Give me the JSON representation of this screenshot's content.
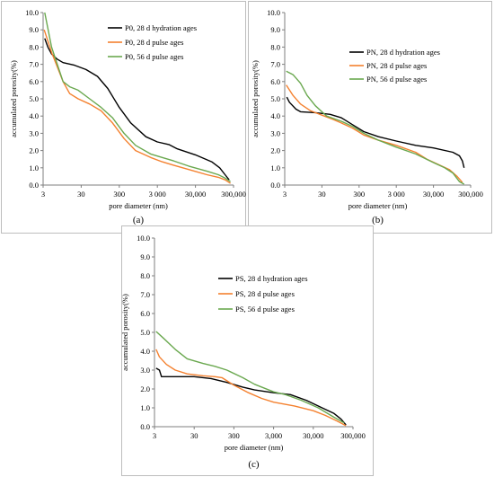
{
  "colors": {
    "black_series": "#000000",
    "orange_series": "#F4812F",
    "green_series": "#6AA84F"
  },
  "chart_data": [
    {
      "type": "line",
      "panel": "a",
      "caption": "(a)",
      "xlabel": "pore diameter (nm)",
      "ylabel": "accumulated porosity(%)",
      "x_scale": "log",
      "xlim": [
        3,
        300000
      ],
      "ylim": [
        0,
        10
      ],
      "x_ticks": [
        3,
        30,
        300,
        3000,
        30000,
        300000
      ],
      "x_tick_labels": [
        "3",
        "30",
        "300",
        "3 000",
        "30,000",
        "300,000"
      ],
      "y_ticks": [
        0,
        1,
        2,
        3,
        4,
        5,
        6,
        7,
        8,
        9,
        10
      ],
      "y_tick_labels": [
        "0.0",
        "1.0",
        "2.0",
        "3.0",
        "4.0",
        "5.0",
        "6.0",
        "7.0",
        "8.0",
        "9.0",
        "10.0"
      ],
      "grid": false,
      "legend_position": "top-right",
      "series": [
        {
          "name": "P0, 28 d hydration ages",
          "color": "#000000",
          "points": [
            [
              3.3,
              8.5
            ],
            [
              4,
              8.0
            ],
            [
              5,
              7.6
            ],
            [
              7,
              7.3
            ],
            [
              10,
              7.1
            ],
            [
              20,
              6.95
            ],
            [
              40,
              6.7
            ],
            [
              80,
              6.3
            ],
            [
              150,
              5.6
            ],
            [
              300,
              4.5
            ],
            [
              600,
              3.6
            ],
            [
              1500,
              2.8
            ],
            [
              3000,
              2.5
            ],
            [
              6000,
              2.35
            ],
            [
              10000,
              2.1
            ],
            [
              30000,
              1.75
            ],
            [
              80000,
              1.35
            ],
            [
              130000,
              1.0
            ],
            [
              180000,
              0.6
            ],
            [
              230000,
              0.3
            ]
          ]
        },
        {
          "name": "P0, 28 d pulse ages",
          "color": "#F4812F",
          "points": [
            [
              3.2,
              9.0
            ],
            [
              5,
              7.7
            ],
            [
              10,
              6.0
            ],
            [
              15,
              5.3
            ],
            [
              25,
              5.0
            ],
            [
              50,
              4.7
            ],
            [
              100,
              4.3
            ],
            [
              200,
              3.6
            ],
            [
              400,
              2.7
            ],
            [
              800,
              2.0
            ],
            [
              2000,
              1.6
            ],
            [
              4000,
              1.35
            ],
            [
              8000,
              1.15
            ],
            [
              20000,
              0.9
            ],
            [
              60000,
              0.6
            ],
            [
              120000,
              0.45
            ],
            [
              180000,
              0.3
            ],
            [
              250000,
              0.1
            ]
          ]
        },
        {
          "name": "P0, 56 d pulse ages",
          "color": "#6AA84F",
          "points": [
            [
              3.3,
              10.0
            ],
            [
              5,
              8.0
            ],
            [
              10,
              6.0
            ],
            [
              15,
              5.7
            ],
            [
              25,
              5.5
            ],
            [
              50,
              5.0
            ],
            [
              100,
              4.5
            ],
            [
              200,
              3.9
            ],
            [
              400,
              3.0
            ],
            [
              800,
              2.3
            ],
            [
              2000,
              1.8
            ],
            [
              4000,
              1.6
            ],
            [
              8000,
              1.4
            ],
            [
              20000,
              1.1
            ],
            [
              60000,
              0.8
            ],
            [
              120000,
              0.6
            ],
            [
              180000,
              0.4
            ],
            [
              250000,
              0.2
            ]
          ]
        }
      ]
    },
    {
      "type": "line",
      "panel": "b",
      "caption": "(b)",
      "xlabel": "pore diameter (nm)",
      "ylabel": "accumulated porosity(%)",
      "x_scale": "log",
      "xlim": [
        3,
        300000
      ],
      "ylim": [
        0,
        10
      ],
      "x_ticks": [
        3,
        30,
        300,
        3000,
        30000,
        300000
      ],
      "x_tick_labels": [
        "3",
        "30",
        "300",
        "3 000",
        "30,000",
        "300,000"
      ],
      "y_ticks": [
        0,
        1,
        2,
        3,
        4,
        5,
        6,
        7,
        8,
        9,
        10
      ],
      "y_tick_labels": [
        "0.0",
        "1.0",
        "2.0",
        "3.0",
        "4.0",
        "5.0",
        "6.0",
        "7.0",
        "8.0",
        "9.0",
        "10.0"
      ],
      "grid": false,
      "legend_position": "top-right",
      "series": [
        {
          "name": "PN, 28 d hydration ages",
          "color": "#000000",
          "points": [
            [
              3.4,
              5.1
            ],
            [
              4,
              4.8
            ],
            [
              6,
              4.4
            ],
            [
              8,
              4.25
            ],
            [
              20,
              4.2
            ],
            [
              50,
              4.1
            ],
            [
              100,
              3.9
            ],
            [
              200,
              3.5
            ],
            [
              400,
              3.1
            ],
            [
              1000,
              2.8
            ],
            [
              3000,
              2.55
            ],
            [
              10000,
              2.3
            ],
            [
              30000,
              2.15
            ],
            [
              100000,
              1.9
            ],
            [
              150000,
              1.7
            ],
            [
              180000,
              1.4
            ],
            [
              200000,
              1.0
            ]
          ]
        },
        {
          "name": "PN, 28 d pulse ages",
          "color": "#F4812F",
          "points": [
            [
              3.3,
              5.8
            ],
            [
              5,
              5.2
            ],
            [
              8,
              4.7
            ],
            [
              15,
              4.3
            ],
            [
              30,
              4.05
            ],
            [
              60,
              3.8
            ],
            [
              100,
              3.6
            ],
            [
              200,
              3.3
            ],
            [
              400,
              2.9
            ],
            [
              1000,
              2.6
            ],
            [
              3000,
              2.3
            ],
            [
              10000,
              1.9
            ],
            [
              20000,
              1.5
            ],
            [
              40000,
              1.2
            ],
            [
              80000,
              0.9
            ],
            [
              130000,
              0.5
            ],
            [
              180000,
              0.15
            ]
          ]
        },
        {
          "name": "PN, 56 d pulse ages",
          "color": "#6AA84F",
          "points": [
            [
              3.3,
              6.6
            ],
            [
              5,
              6.4
            ],
            [
              8,
              5.9
            ],
            [
              12,
              5.2
            ],
            [
              20,
              4.6
            ],
            [
              40,
              4.0
            ],
            [
              100,
              3.7
            ],
            [
              200,
              3.4
            ],
            [
              400,
              3.0
            ],
            [
              1000,
              2.6
            ],
            [
              3000,
              2.2
            ],
            [
              10000,
              1.8
            ],
            [
              30000,
              1.3
            ],
            [
              60000,
              1.0
            ],
            [
              100000,
              0.7
            ],
            [
              150000,
              0.2
            ],
            [
              200000,
              0.05
            ]
          ]
        }
      ]
    },
    {
      "type": "line",
      "panel": "c",
      "caption": "(c)",
      "xlabel": "pore diameter (nm)",
      "ylabel": "accumulated porosity(%)",
      "x_scale": "log",
      "xlim": [
        3,
        300000
      ],
      "ylim": [
        0,
        10
      ],
      "x_ticks": [
        3,
        30,
        300,
        3000,
        30000,
        300000
      ],
      "x_tick_labels": [
        "3",
        "30",
        "300",
        "3,000",
        "30,000",
        "300,000"
      ],
      "y_ticks": [
        0,
        1,
        2,
        3,
        4,
        5,
        6,
        7,
        8,
        9,
        10
      ],
      "y_tick_labels": [
        "0.0",
        "1.0",
        "2.0",
        "3.0",
        "4.0",
        "5.0",
        "6.0",
        "7.0",
        "8.0",
        "9.0",
        "10.0"
      ],
      "grid": false,
      "legend_position": "top-right",
      "series": [
        {
          "name": "PS, 28 d hydration ages",
          "color": "#000000",
          "points": [
            [
              3.3,
              3.1
            ],
            [
              4,
              3.0
            ],
            [
              4.5,
              2.65
            ],
            [
              10,
              2.65
            ],
            [
              30,
              2.65
            ],
            [
              80,
              2.55
            ],
            [
              200,
              2.35
            ],
            [
              500,
              2.1
            ],
            [
              1000,
              1.95
            ],
            [
              3000,
              1.8
            ],
            [
              8000,
              1.7
            ],
            [
              20000,
              1.4
            ],
            [
              50000,
              1.0
            ],
            [
              100000,
              0.7
            ],
            [
              150000,
              0.4
            ],
            [
              200000,
              0.1
            ]
          ]
        },
        {
          "name": "PS, 28 d pulse ages",
          "color": "#F4812F",
          "points": [
            [
              3.3,
              4.1
            ],
            [
              4,
              3.7
            ],
            [
              6,
              3.3
            ],
            [
              10,
              3.0
            ],
            [
              20,
              2.8
            ],
            [
              50,
              2.7
            ],
            [
              100,
              2.65
            ],
            [
              150,
              2.6
            ],
            [
              300,
              2.2
            ],
            [
              700,
              1.8
            ],
            [
              1500,
              1.5
            ],
            [
              3000,
              1.3
            ],
            [
              10000,
              1.1
            ],
            [
              30000,
              0.85
            ],
            [
              60000,
              0.6
            ],
            [
              120000,
              0.3
            ],
            [
              200000,
              0.05
            ]
          ]
        },
        {
          "name": "PS, 56 d pulse ages",
          "color": "#6AA84F",
          "points": [
            [
              3.3,
              5.05
            ],
            [
              5,
              4.7
            ],
            [
              10,
              4.1
            ],
            [
              20,
              3.6
            ],
            [
              50,
              3.35
            ],
            [
              100,
              3.2
            ],
            [
              200,
              3.0
            ],
            [
              500,
              2.6
            ],
            [
              1000,
              2.25
            ],
            [
              3000,
              1.85
            ],
            [
              6000,
              1.7
            ],
            [
              15000,
              1.4
            ],
            [
              40000,
              1.0
            ],
            [
              100000,
              0.5
            ],
            [
              180000,
              0.2
            ]
          ]
        }
      ]
    }
  ]
}
